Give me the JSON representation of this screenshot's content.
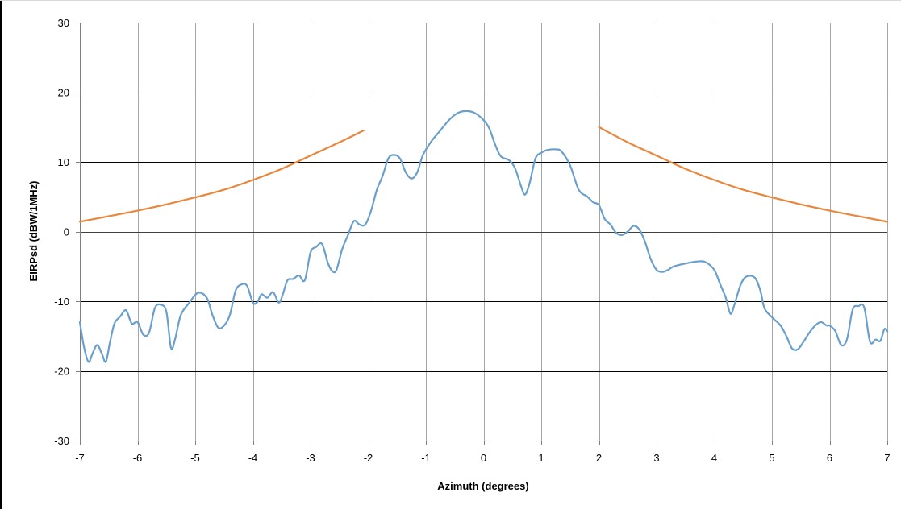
{
  "chart_data": {
    "type": "line",
    "title": "",
    "xlabel": "Azimuth (degrees)",
    "ylabel": "EIRPsd (dBW/1MHz)",
    "xlim": [
      -7,
      7
    ],
    "ylim": [
      -30,
      30
    ],
    "x_ticks": [
      -7,
      -6,
      -5,
      -4,
      -3,
      -2,
      -1,
      0,
      1,
      2,
      3,
      4,
      5,
      6,
      7
    ],
    "y_ticks": [
      -30,
      -20,
      -10,
      0,
      10,
      20,
      30
    ],
    "grid": true,
    "legend": "none",
    "series": [
      {
        "color": "#6a9fcb",
        "points": [
          [
            -7.0,
            -13.0
          ],
          [
            -6.93,
            -16.5
          ],
          [
            -6.85,
            -18.7
          ],
          [
            -6.78,
            -17.5
          ],
          [
            -6.7,
            -16.3
          ],
          [
            -6.62,
            -17.5
          ],
          [
            -6.55,
            -18.7
          ],
          [
            -6.48,
            -16.0
          ],
          [
            -6.4,
            -13.2
          ],
          [
            -6.3,
            -12.2
          ],
          [
            -6.2,
            -11.3
          ],
          [
            -6.1,
            -13.2
          ],
          [
            -6.0,
            -13.0
          ],
          [
            -5.9,
            -14.8
          ],
          [
            -5.8,
            -14.5
          ],
          [
            -5.7,
            -11.0
          ],
          [
            -5.6,
            -10.5
          ],
          [
            -5.5,
            -11.5
          ],
          [
            -5.42,
            -16.7
          ],
          [
            -5.35,
            -15.5
          ],
          [
            -5.25,
            -12.0
          ],
          [
            -5.1,
            -10.2
          ],
          [
            -4.95,
            -8.8
          ],
          [
            -4.8,
            -9.5
          ],
          [
            -4.7,
            -12.0
          ],
          [
            -4.6,
            -13.8
          ],
          [
            -4.5,
            -13.5
          ],
          [
            -4.4,
            -12.0
          ],
          [
            -4.3,
            -8.5
          ],
          [
            -4.2,
            -7.6
          ],
          [
            -4.1,
            -7.8
          ],
          [
            -4.0,
            -10.2
          ],
          [
            -3.92,
            -10.1
          ],
          [
            -3.85,
            -9.0
          ],
          [
            -3.75,
            -9.5
          ],
          [
            -3.65,
            -8.7
          ],
          [
            -3.55,
            -10.2
          ],
          [
            -3.48,
            -9.0
          ],
          [
            -3.4,
            -7.0
          ],
          [
            -3.3,
            -6.8
          ],
          [
            -3.2,
            -6.3
          ],
          [
            -3.1,
            -7.0
          ],
          [
            -3.0,
            -3.0
          ],
          [
            -2.9,
            -2.2
          ],
          [
            -2.8,
            -1.8
          ],
          [
            -2.7,
            -4.5
          ],
          [
            -2.62,
            -5.7
          ],
          [
            -2.55,
            -5.5
          ],
          [
            -2.45,
            -2.5
          ],
          [
            -2.35,
            -0.5
          ],
          [
            -2.25,
            1.5
          ],
          [
            -2.15,
            1.0
          ],
          [
            -2.05,
            1.0
          ],
          [
            -1.95,
            3.0
          ],
          [
            -1.85,
            6.0
          ],
          [
            -1.75,
            8.0
          ],
          [
            -1.65,
            10.5
          ],
          [
            -1.55,
            11.0
          ],
          [
            -1.45,
            10.5
          ],
          [
            -1.35,
            8.5
          ],
          [
            -1.25,
            7.6
          ],
          [
            -1.15,
            8.5
          ],
          [
            -1.05,
            11.0
          ],
          [
            -0.9,
            13.0
          ],
          [
            -0.75,
            14.5
          ],
          [
            -0.6,
            16.0
          ],
          [
            -0.45,
            17.0
          ],
          [
            -0.3,
            17.3
          ],
          [
            -0.15,
            17.0
          ],
          [
            0.0,
            16.0
          ],
          [
            0.1,
            14.8
          ],
          [
            0.2,
            12.5
          ],
          [
            0.3,
            10.8
          ],
          [
            0.45,
            10.2
          ],
          [
            0.55,
            9.0
          ],
          [
            0.65,
            6.5
          ],
          [
            0.72,
            5.3
          ],
          [
            0.8,
            7.0
          ],
          [
            0.9,
            10.5
          ],
          [
            1.0,
            11.3
          ],
          [
            1.1,
            11.7
          ],
          [
            1.25,
            11.8
          ],
          [
            1.35,
            11.5
          ],
          [
            1.5,
            9.5
          ],
          [
            1.65,
            6.0
          ],
          [
            1.8,
            5.0
          ],
          [
            1.9,
            4.2
          ],
          [
            2.0,
            3.8
          ],
          [
            2.1,
            1.8
          ],
          [
            2.2,
            1.0
          ],
          [
            2.3,
            -0.2
          ],
          [
            2.4,
            -0.5
          ],
          [
            2.5,
            0.0
          ],
          [
            2.6,
            0.8
          ],
          [
            2.7,
            0.3
          ],
          [
            2.8,
            -1.5
          ],
          [
            2.9,
            -4.0
          ],
          [
            3.0,
            -5.5
          ],
          [
            3.1,
            -5.8
          ],
          [
            3.2,
            -5.5
          ],
          [
            3.3,
            -5.0
          ],
          [
            3.5,
            -4.6
          ],
          [
            3.7,
            -4.3
          ],
          [
            3.85,
            -4.4
          ],
          [
            4.0,
            -5.5
          ],
          [
            4.1,
            -7.5
          ],
          [
            4.2,
            -9.5
          ],
          [
            4.28,
            -11.8
          ],
          [
            4.35,
            -10.5
          ],
          [
            4.45,
            -7.8
          ],
          [
            4.55,
            -6.5
          ],
          [
            4.7,
            -6.6
          ],
          [
            4.8,
            -8.5
          ],
          [
            4.87,
            -11.0
          ],
          [
            5.0,
            -12.3
          ],
          [
            5.15,
            -13.5
          ],
          [
            5.25,
            -15.0
          ],
          [
            5.35,
            -16.8
          ],
          [
            5.45,
            -16.9
          ],
          [
            5.55,
            -15.8
          ],
          [
            5.65,
            -14.5
          ],
          [
            5.75,
            -13.5
          ],
          [
            5.85,
            -13.0
          ],
          [
            5.95,
            -13.5
          ],
          [
            6.0,
            -13.5
          ],
          [
            6.1,
            -14.3
          ],
          [
            6.2,
            -16.3
          ],
          [
            6.3,
            -15.5
          ],
          [
            6.4,
            -11.2
          ],
          [
            6.5,
            -10.7
          ],
          [
            6.6,
            -10.9
          ],
          [
            6.7,
            -15.8
          ],
          [
            6.8,
            -15.5
          ],
          [
            6.88,
            -15.7
          ],
          [
            6.95,
            -14.0
          ],
          [
            7.0,
            -14.3
          ]
        ]
      },
      {
        "color": "#e8873c",
        "points": [
          [
            -7.0,
            1.4
          ],
          [
            -6.5,
            2.2
          ],
          [
            -6.0,
            3.0
          ],
          [
            -5.5,
            3.9
          ],
          [
            -5.0,
            4.9
          ],
          [
            -4.5,
            6.0
          ],
          [
            -4.0,
            7.4
          ],
          [
            -3.5,
            9.0
          ],
          [
            -3.0,
            10.9
          ],
          [
            -2.5,
            12.8
          ],
          [
            -2.08,
            14.5
          ]
        ]
      },
      {
        "color": "#e8873c",
        "points": [
          [
            2.0,
            15.0
          ],
          [
            2.5,
            12.8
          ],
          [
            3.0,
            10.9
          ],
          [
            3.5,
            9.0
          ],
          [
            4.0,
            7.4
          ],
          [
            4.5,
            6.0
          ],
          [
            5.0,
            4.9
          ],
          [
            5.5,
            3.9
          ],
          [
            6.0,
            3.0
          ],
          [
            6.5,
            2.2
          ],
          [
            7.0,
            1.4
          ]
        ]
      }
    ]
  }
}
